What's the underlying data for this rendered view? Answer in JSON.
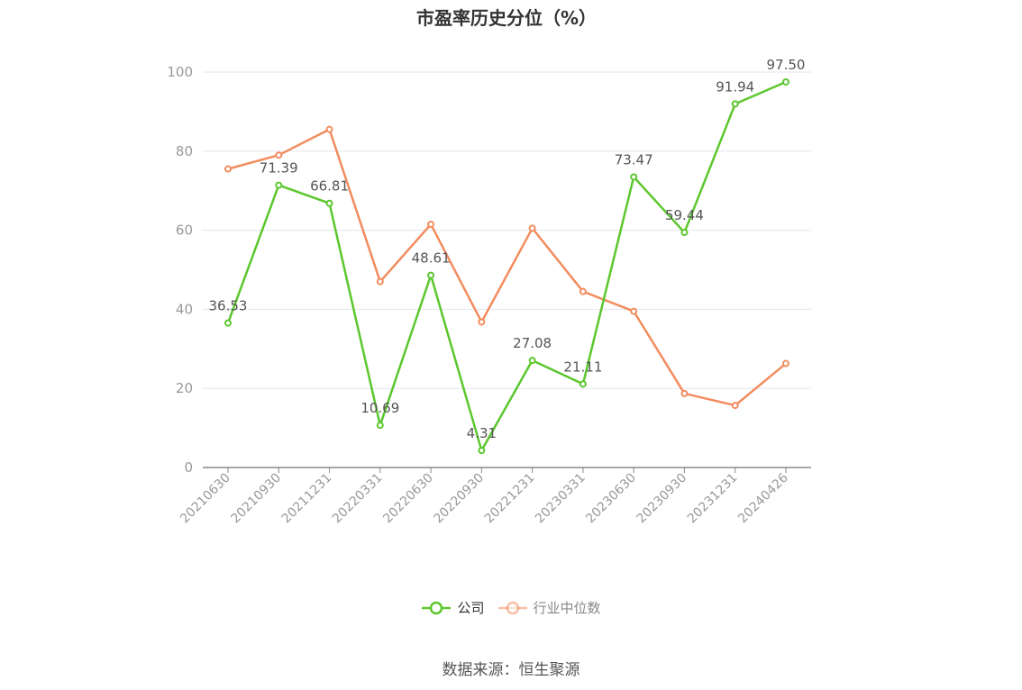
{
  "title": "市盈率历史分位（%）",
  "source": "数据来源：恒生聚源",
  "colors": {
    "company": "#5cc72e",
    "industry": "#f28c5e",
    "grid": "#e3e6ee",
    "axis": "#999999",
    "label": "#555555"
  },
  "chart_data": {
    "type": "line",
    "title": "市盈率历史分位（%）",
    "categories": [
      "20210630",
      "20210930",
      "20211231",
      "20220331",
      "20220630",
      "20220930",
      "20221231",
      "20230331",
      "20230630",
      "20230930",
      "20231231",
      "20240426"
    ],
    "ylim": [
      0,
      100
    ],
    "yticks": [
      0,
      20,
      40,
      60,
      80,
      100
    ],
    "grid": true,
    "legend_position": "bottom",
    "series": [
      {
        "name": "公司",
        "color": "#5cc72e",
        "show_labels": true,
        "values": [
          36.53,
          71.39,
          66.81,
          10.69,
          48.61,
          4.31,
          27.08,
          21.11,
          73.47,
          59.44,
          91.94,
          97.5
        ],
        "labels": [
          "36.53",
          "71.39",
          "66.81",
          "10.69",
          "48.61",
          "4.31",
          "27.08",
          "21.11",
          "73.47",
          "59.44",
          "91.94",
          "97.50"
        ]
      },
      {
        "name": "行业中位数",
        "color": "#f28c5e",
        "show_labels": false,
        "values": [
          75.5,
          79.0,
          85.5,
          47.0,
          61.5,
          36.8,
          60.5,
          44.5,
          39.5,
          18.7,
          15.7,
          26.3
        ]
      }
    ]
  }
}
